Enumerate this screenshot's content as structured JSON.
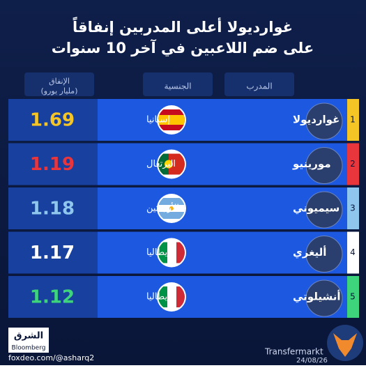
{
  "header": {
    "title_lines": [
      "غوارديولا أعلى المدربين إنفاقاً",
      "على ضم اللاعبين في آخر 10 سنوات"
    ]
  },
  "table": {
    "columns": [
      "المدرب",
      "الجنسية",
      "الإنفاق\n(مليار يورو)"
    ],
    "rows": [
      {
        "rank": "1",
        "name": "غوارديولا",
        "country": "إسبانيا",
        "spending": "1.69",
        "color": "#f5c526"
      },
      {
        "rank": "2",
        "name": "مورينيو",
        "country": "البرتغال",
        "spending": "1.19",
        "color": "#e8363c"
      },
      {
        "rank": "3",
        "name": "سيميوني",
        "country": "الأرجنتين",
        "spending": "1.18",
        "color": "#8fc6ee"
      },
      {
        "rank": "4",
        "name": "أليغري",
        "country": "إيطاليا",
        "spending": "1.17",
        "color": "#ffffff"
      },
      {
        "rank": "5",
        "name": "أنشيلوتي",
        "country": "إيطاليا",
        "spending": "1.12",
        "color": "#3dd47c"
      }
    ]
  },
  "footer": {
    "source": "Transfermarkt",
    "date": "24/08/26",
    "brand": "الشرق",
    "brand_sub": "Bloomberg",
    "watermark": "foxdeo.com/@asharq2"
  }
}
